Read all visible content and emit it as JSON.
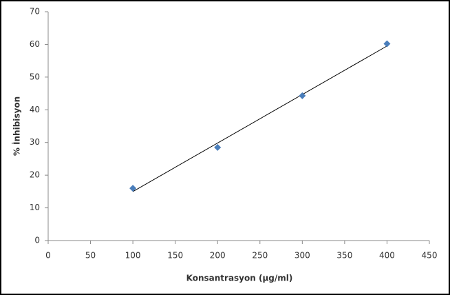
{
  "chart_data": {
    "type": "scatter",
    "x_label": "Konsantrasyon (µg/ml)",
    "y_label": "% İnhibisyon",
    "series": [
      {
        "name": "İnhibisyon",
        "color": "#4a7ebb",
        "x": [
          100,
          200,
          300,
          400
        ],
        "values": [
          16,
          28.5,
          44.3,
          60.2
        ]
      }
    ],
    "trendline": "linear",
    "trendline_color": "#000000",
    "xlim": [
      0,
      450
    ],
    "xticks": [
      0,
      50,
      100,
      150,
      200,
      250,
      300,
      350,
      400,
      450
    ],
    "ylim": [
      0,
      70
    ],
    "yticks": [
      0,
      10,
      20,
      30,
      40,
      50,
      60,
      70
    ],
    "grid": false
  }
}
